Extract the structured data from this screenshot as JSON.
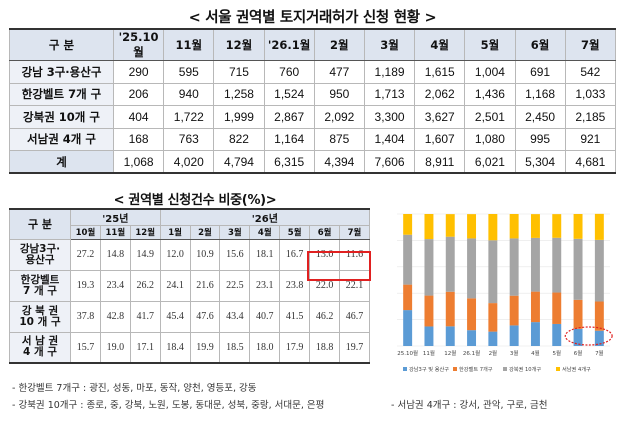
{
  "title1": "< 서울 권역별 토지거래허가 신청 현황 >",
  "table1": {
    "header_label": "구  분",
    "columns": [
      "'25.10월",
      "11월",
      "12월",
      "'26.1월",
      "2월",
      "3월",
      "4월",
      "5월",
      "6월",
      "7월"
    ],
    "rows": [
      {
        "label": "강남 3구·용산구",
        "values": [
          "290",
          "595",
          "715",
          "760",
          "477",
          "1,189",
          "1,615",
          "1,004",
          "691",
          "542"
        ]
      },
      {
        "label": "한강벨트 7개 구",
        "values": [
          "206",
          "940",
          "1,258",
          "1,524",
          "950",
          "1,713",
          "2,062",
          "1,436",
          "1,168",
          "1,033"
        ]
      },
      {
        "label": "강북권 10개 구",
        "values": [
          "404",
          "1,722",
          "1,999",
          "2,867",
          "2,092",
          "3,300",
          "3,627",
          "2,501",
          "2,450",
          "2,185"
        ]
      },
      {
        "label": "서남권 4개 구",
        "values": [
          "168",
          "763",
          "822",
          "1,164",
          "875",
          "1,404",
          "1,607",
          "1,080",
          "995",
          "921"
        ]
      }
    ],
    "total": {
      "label": "계",
      "values": [
        "1,068",
        "4,020",
        "4,794",
        "6,315",
        "4,394",
        "7,606",
        "8,911",
        "6,021",
        "5,304",
        "4,681"
      ]
    }
  },
  "title2": "< 권역별 신청건수 비중(%)>",
  "table2": {
    "header_label": "구  분",
    "year1": "'25년",
    "year2": "'26년",
    "months": [
      "10월",
      "11월",
      "12월",
      "1월",
      "2월",
      "3월",
      "4월",
      "5월",
      "6월",
      "7월"
    ],
    "rows": [
      {
        "label1": "강남3구·",
        "label2": "용산구",
        "values": [
          "27.2",
          "14.8",
          "14.9",
          "12.0",
          "10.9",
          "15.6",
          "18.1",
          "16.7",
          "13.0",
          "11.6"
        ]
      },
      {
        "label1": "한강벨트",
        "label2": "7 개 구",
        "values": [
          "19.3",
          "23.4",
          "26.2",
          "24.1",
          "21.6",
          "22.5",
          "23.1",
          "23.8",
          "22.0",
          "22.1"
        ]
      },
      {
        "label1": "강 북 권",
        "label2": "10 개 구",
        "values": [
          "37.8",
          "42.8",
          "41.7",
          "45.4",
          "47.6",
          "43.4",
          "40.7",
          "41.5",
          "46.2",
          "46.7"
        ]
      },
      {
        "label1": "서 남 권",
        "label2": "4 개 구",
        "values": [
          "15.7",
          "19.0",
          "17.1",
          "18.4",
          "19.9",
          "18.5",
          "18.0",
          "17.9",
          "18.8",
          "19.7"
        ]
      }
    ]
  },
  "notes": {
    "hangang": "- 한강벨트 7개구 : 광진, 성동, 마포, 동작, 양천, 영등포, 강동",
    "gangbuk": "- 강북권 10개구 : 종로, 중, 강북, 노원, 도봉, 동대문, 성북, 중랑, 서대문, 은평",
    "seonam": "- 서남권 4개구   : 강서, 관악, 구로, 금천"
  },
  "colors": {
    "s1": "#5b9bd5",
    "s2": "#ed7d31",
    "s3": "#a5a5a5",
    "s4": "#ffc000",
    "highlight": "#e02020"
  },
  "chart_data": {
    "type": "bar",
    "stacked": true,
    "categories": [
      "25.10월",
      "11월",
      "12월",
      "26.1월",
      "2월",
      "3월",
      "4월",
      "5월",
      "6월",
      "7월"
    ],
    "series": [
      {
        "name": "강남3구 및 용산구",
        "values": [
          27.2,
          14.8,
          14.9,
          12.0,
          10.9,
          15.6,
          18.1,
          16.7,
          13.0,
          11.6
        ]
      },
      {
        "name": "한강벨트 7개구",
        "values": [
          19.3,
          23.4,
          26.2,
          24.1,
          21.6,
          22.5,
          23.1,
          23.8,
          22.0,
          22.1
        ]
      },
      {
        "name": "강북권 10개구",
        "values": [
          37.8,
          42.8,
          41.7,
          45.4,
          47.6,
          43.4,
          40.7,
          41.5,
          46.2,
          46.7
        ]
      },
      {
        "name": "서남권 4개구",
        "values": [
          15.7,
          19.0,
          17.1,
          18.4,
          19.9,
          18.5,
          18.0,
          17.9,
          18.8,
          19.7
        ]
      }
    ],
    "ylim": [
      0,
      100
    ],
    "legend": "bottom"
  }
}
